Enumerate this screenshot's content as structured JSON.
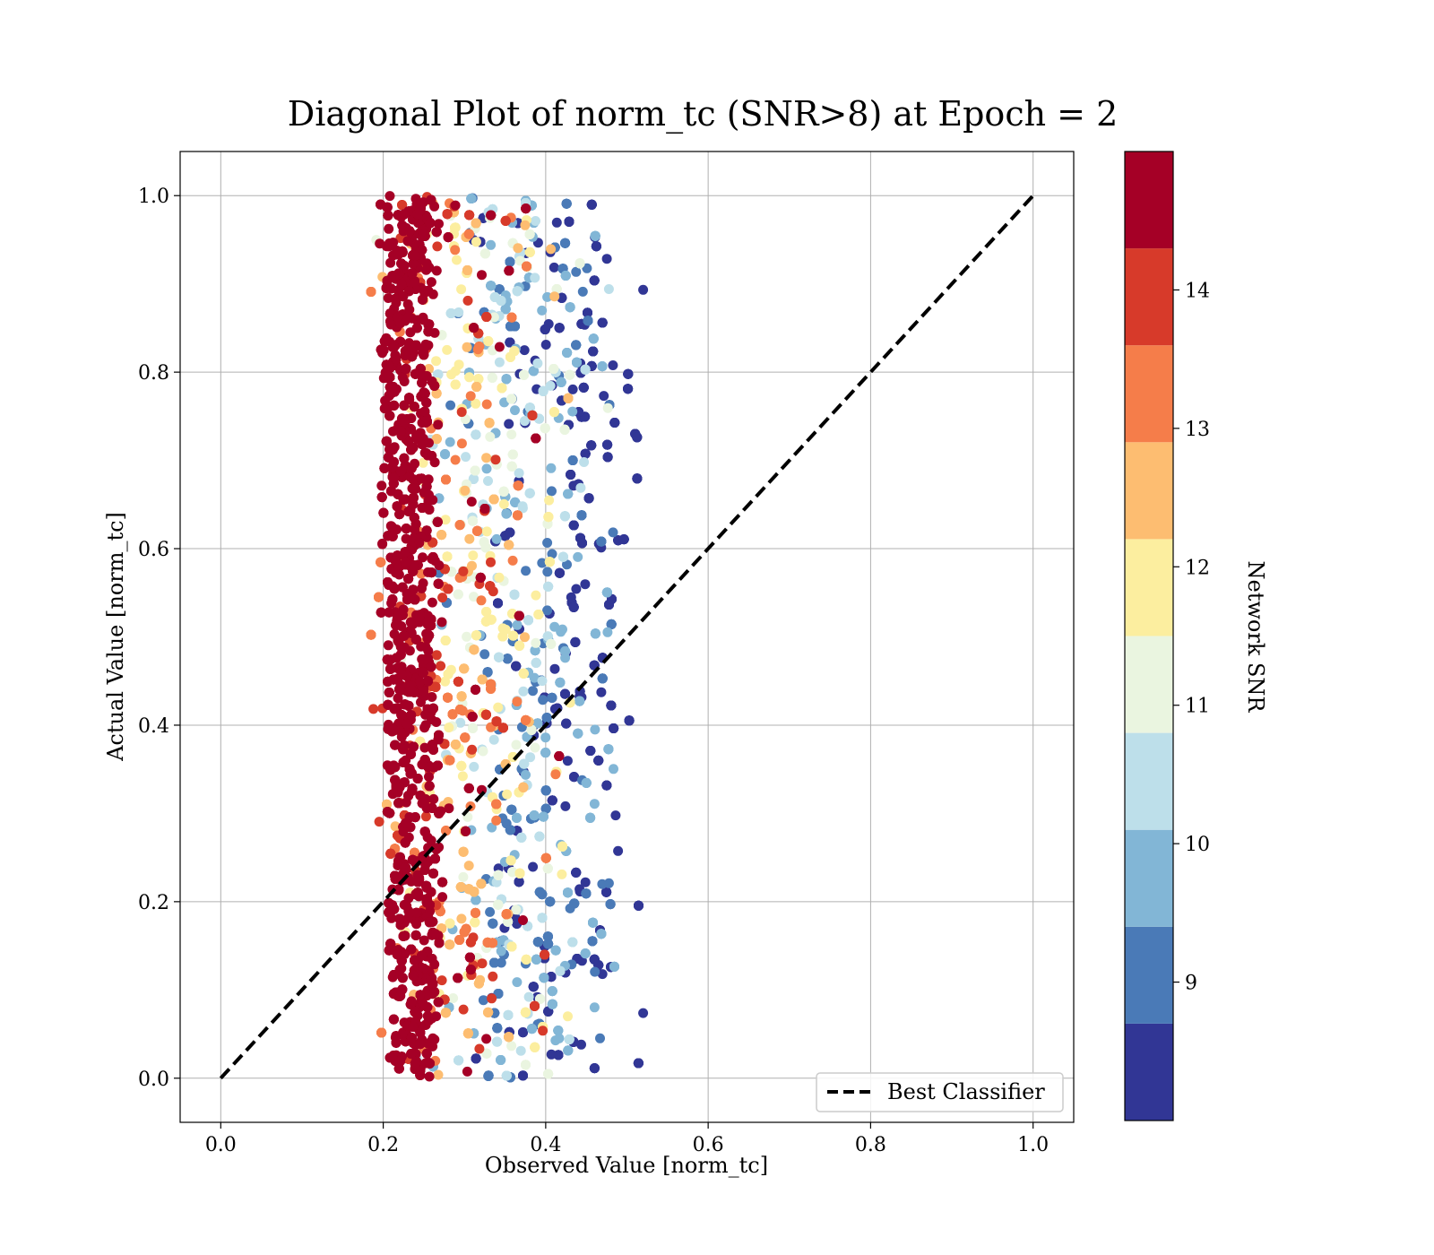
{
  "chart_data": {
    "type": "scatter",
    "title": "Diagonal Plot of norm_tc (SNR>8) at Epoch = 2",
    "xlabel": "Observed Value [norm_tc]",
    "ylabel": "Actual Value [norm_tc]",
    "xlim": [
      -0.05,
      1.05
    ],
    "ylim": [
      -0.05,
      1.05
    ],
    "xticks": [
      "0.0",
      "0.2",
      "0.4",
      "0.6",
      "0.8",
      "1.0"
    ],
    "yticks": [
      "0.0",
      "0.2",
      "0.4",
      "0.6",
      "0.8",
      "1.0"
    ],
    "grid": true,
    "scatter_extent": {
      "x_min": 0.18,
      "x_max": 0.52,
      "y_min": 0.0,
      "y_max": 1.0
    },
    "color_trend": "points near x≈0.2–0.27 are dark red (SNR ≥ 14); higher-SNR points cluster at lower observed values, lower-SNR (blue) points spread toward x≈0.5",
    "reference_line": {
      "label": "Best Classifier",
      "x": [
        0.0,
        1.0
      ],
      "y": [
        0.0,
        1.0
      ],
      "style": "dashed",
      "color": "#000000"
    },
    "legend": {
      "entries": [
        "Best Classifier"
      ],
      "placement": "lower-right"
    },
    "colorbar": {
      "label": "Network SNR",
      "ticks": [
        "9",
        "10",
        "11",
        "12",
        "13",
        "14"
      ],
      "range": [
        8,
        15
      ],
      "bins": [
        {
          "from": 8.0,
          "to": 8.7,
          "color": "#313695"
        },
        {
          "from": 8.7,
          "to": 9.4,
          "color": "#4a7ab7"
        },
        {
          "from": 9.4,
          "to": 10.1,
          "color": "#82b6d6"
        },
        {
          "from": 10.1,
          "to": 10.8,
          "color": "#bddfea"
        },
        {
          "from": 10.8,
          "to": 11.5,
          "color": "#eaf5e0"
        },
        {
          "from": 11.5,
          "to": 12.2,
          "color": "#fcee9f"
        },
        {
          "from": 12.2,
          "to": 12.9,
          "color": "#fdbd71"
        },
        {
          "from": 12.9,
          "to": 13.6,
          "color": "#f57d4a"
        },
        {
          "from": 13.6,
          "to": 14.3,
          "color": "#d73a2a"
        },
        {
          "from": 14.3,
          "to": 15.0,
          "color": "#a50026"
        }
      ]
    }
  }
}
